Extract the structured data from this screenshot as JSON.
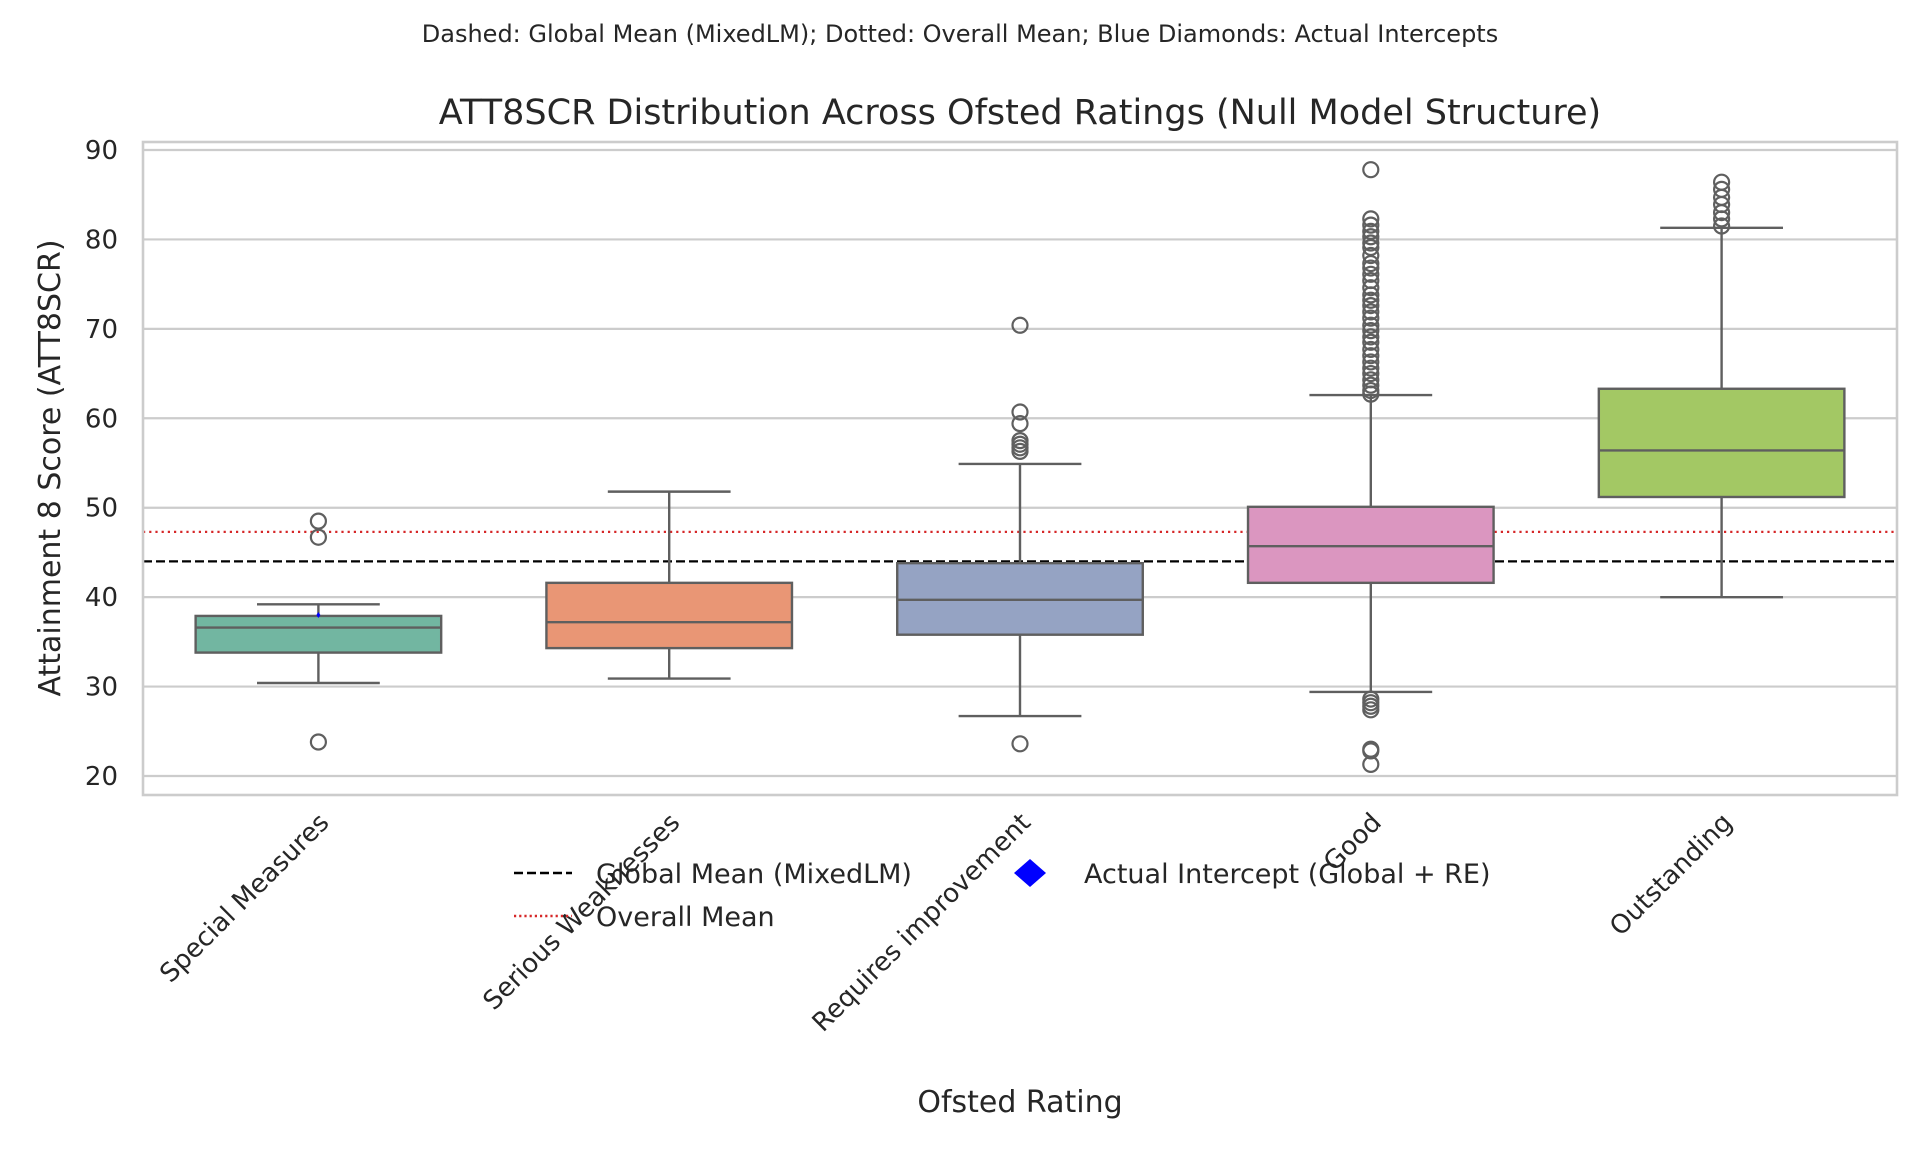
{
  "chart_data": {
    "type": "box",
    "subtitle": "Dashed: Global Mean (MixedLM); Dotted: Overall Mean; Blue Diamonds: Actual Intercepts",
    "title": "ATT8SCR Distribution Across Ofsted Ratings (Null Model Structure)",
    "xlabel": "Ofsted Rating",
    "ylabel": "Attainment 8 Score (ATT8SCR)",
    "ylim": [
      18,
      91
    ],
    "yticks": [
      20,
      30,
      40,
      50,
      60,
      70,
      80,
      90
    ],
    "grid": true,
    "categories": [
      "Special Measures",
      "Serious Weaknesses",
      "Requires improvement",
      "Good",
      "Outstanding"
    ],
    "boxes": [
      {
        "category": "Special Measures",
        "color": "#72b6a1",
        "whisker_low": 30.4,
        "q1": 33.8,
        "median": 36.6,
        "q3": 37.9,
        "whisker_high": 39.2,
        "outliers": [
          48.5,
          46.7,
          23.8
        ],
        "intercept": 38.0
      },
      {
        "category": "Serious Weaknesses",
        "color": "#e99675",
        "whisker_low": 30.9,
        "q1": 34.3,
        "median": 37.2,
        "q3": 41.6,
        "whisker_high": 51.8,
        "outliers": [],
        "intercept": null
      },
      {
        "category": "Requires improvement",
        "color": "#95a3c3",
        "whisker_low": 26.7,
        "q1": 35.8,
        "median": 39.7,
        "q3": 43.8,
        "whisker_high": 54.9,
        "outliers": [
          70.4,
          60.7,
          59.4,
          57.5,
          57.1,
          56.7,
          56.3,
          23.6
        ],
        "intercept": null
      },
      {
        "category": "Good",
        "color": "#db96c0",
        "whisker_low": 29.4,
        "q1": 41.6,
        "median": 45.7,
        "q3": 50.1,
        "whisker_high": 62.6,
        "outliers": [
          87.8,
          82.3,
          81.6,
          80.9,
          80.3,
          79.6,
          79.1,
          78.2,
          77.3,
          76.8,
          76.1,
          75.4,
          74.6,
          73.8,
          73.2,
          72.6,
          71.9,
          71.2,
          70.4,
          69.8,
          69.1,
          68.5,
          67.7,
          67.0,
          66.3,
          65.6,
          65.0,
          64.3,
          63.7,
          63.1,
          62.7,
          28.6,
          28.2,
          27.8,
          27.4,
          23.0,
          22.8,
          21.3
        ],
        "intercept": null
      },
      {
        "category": "Outstanding",
        "color": "#a3c864",
        "whisker_low": 40.0,
        "q1": 51.2,
        "median": 56.4,
        "q3": 63.3,
        "whisker_high": 81.3,
        "outliers": [
          86.4,
          85.6,
          84.7,
          83.9,
          83.0,
          82.3,
          81.5
        ],
        "intercept": null
      }
    ],
    "reference_lines": [
      {
        "name": "Global Mean (MixedLM)",
        "value": 44.0,
        "style": "dashed",
        "color": "#000000"
      },
      {
        "name": "Overall Mean",
        "value": 47.3,
        "style": "dotted",
        "color": "#d62728"
      }
    ],
    "legend": {
      "placement": "lower-center",
      "entries": [
        {
          "label": "Global Mean (MixedLM)",
          "marker": "dashed-line",
          "color": "#000000"
        },
        {
          "label": "Overall Mean",
          "marker": "dotted-line",
          "color": "#d62728"
        },
        {
          "label": "Actual Intercept (Global + RE)",
          "marker": "diamond",
          "color": "#0000ff"
        }
      ]
    },
    "colors": {
      "box_edge": "#5f5f5f",
      "grid": "#cccccc",
      "frame": "#cccccc",
      "intercept": "#0000ff"
    }
  }
}
